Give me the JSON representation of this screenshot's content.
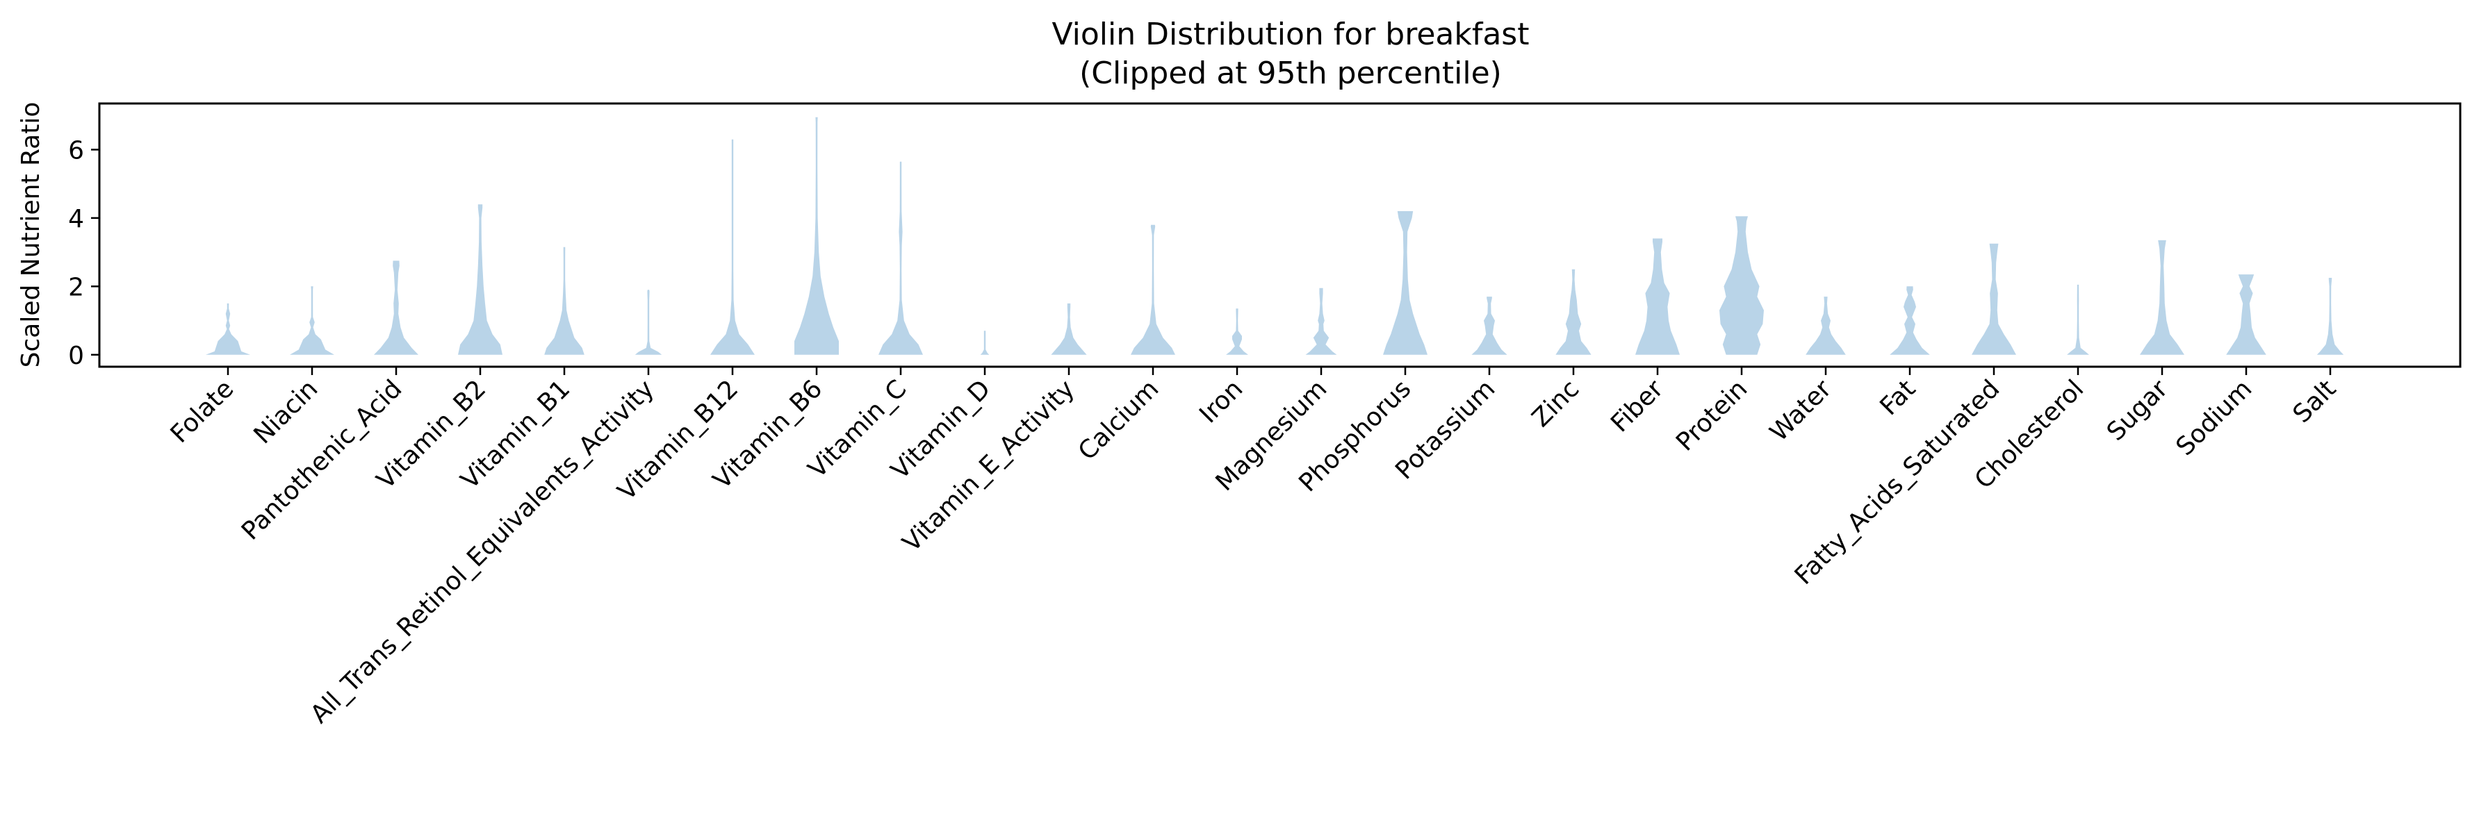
{
  "chart_data": {
    "type": "violin",
    "title": "Violin Distribution for breakfast",
    "subtitle": "(Clipped at 95th percentile)",
    "xlabel": "",
    "ylabel": "Scaled Nutrient Ratio",
    "ylim": [
      -0.35,
      7.35
    ],
    "yticks": [
      0,
      2,
      4,
      6
    ],
    "grid": false,
    "color": "#b9d4e8",
    "categories": [
      "Folate",
      "Niacin",
      "Pantothenic_Acid",
      "Vitamin_B2",
      "Vitamin_B1",
      "All_Trans_Retinol_Equivalents_Activity",
      "Vitamin_B12",
      "Vitamin_B6",
      "Vitamin_C",
      "Vitamin_D",
      "Vitamin_E_Activity",
      "Calcium",
      "Iron",
      "Magnesium",
      "Phosphorus",
      "Potassium",
      "Zinc",
      "Fiber",
      "Protein",
      "Water",
      "Fat",
      "Fatty_Acids_Saturated",
      "Cholesterol",
      "Sugar",
      "Sodium",
      "Salt"
    ],
    "violins": [
      {
        "max": 1.5,
        "profile": [
          [
            0,
            1.0
          ],
          [
            0.1,
            0.6
          ],
          [
            0.4,
            0.45
          ],
          [
            0.6,
            0.15
          ],
          [
            0.75,
            0.05
          ],
          [
            0.85,
            0.1
          ],
          [
            1.0,
            0.04
          ],
          [
            1.2,
            0.1
          ],
          [
            1.35,
            0.03
          ],
          [
            1.5,
            0.04
          ]
        ]
      },
      {
        "max": 2.0,
        "profile": [
          [
            0,
            1.0
          ],
          [
            0.15,
            0.6
          ],
          [
            0.45,
            0.4
          ],
          [
            0.6,
            0.15
          ],
          [
            0.8,
            0.05
          ],
          [
            0.95,
            0.12
          ],
          [
            1.1,
            0.04
          ],
          [
            1.5,
            0.02
          ],
          [
            1.9,
            0.03
          ],
          [
            2.0,
            0.05
          ]
        ]
      },
      {
        "max": 2.75,
        "profile": [
          [
            0,
            1.0
          ],
          [
            0.2,
            0.7
          ],
          [
            0.5,
            0.35
          ],
          [
            0.8,
            0.2
          ],
          [
            1.2,
            0.1
          ],
          [
            1.5,
            0.12
          ],
          [
            1.9,
            0.06
          ],
          [
            2.4,
            0.1
          ],
          [
            2.6,
            0.15
          ],
          [
            2.75,
            0.14
          ]
        ]
      },
      {
        "max": 4.4,
        "profile": [
          [
            0,
            1.0
          ],
          [
            0.3,
            0.9
          ],
          [
            0.6,
            0.55
          ],
          [
            1.0,
            0.3
          ],
          [
            1.5,
            0.22
          ],
          [
            2.0,
            0.15
          ],
          [
            2.6,
            0.1
          ],
          [
            3.3,
            0.06
          ],
          [
            4.0,
            0.05
          ],
          [
            4.3,
            0.1
          ],
          [
            4.4,
            0.1
          ]
        ]
      },
      {
        "max": 3.15,
        "profile": [
          [
            0,
            0.9
          ],
          [
            0.2,
            0.8
          ],
          [
            0.5,
            0.45
          ],
          [
            0.8,
            0.3
          ],
          [
            1.0,
            0.2
          ],
          [
            1.3,
            0.1
          ],
          [
            1.8,
            0.06
          ],
          [
            2.2,
            0.03
          ],
          [
            2.8,
            0.02
          ],
          [
            3.1,
            0.04
          ],
          [
            3.15,
            0.04
          ]
        ]
      },
      {
        "max": 1.9,
        "profile": [
          [
            0,
            0.6
          ],
          [
            0.08,
            0.45
          ],
          [
            0.2,
            0.1
          ],
          [
            0.4,
            0.04
          ],
          [
            1.0,
            0.02
          ],
          [
            1.6,
            0.02
          ],
          [
            1.85,
            0.05
          ],
          [
            1.9,
            0.03
          ]
        ]
      },
      {
        "max": 6.3,
        "profile": [
          [
            0,
            1.0
          ],
          [
            0.3,
            0.7
          ],
          [
            0.6,
            0.3
          ],
          [
            1.0,
            0.12
          ],
          [
            1.6,
            0.05
          ],
          [
            2.5,
            0.03
          ],
          [
            3.5,
            0.015
          ],
          [
            5.0,
            0.01
          ],
          [
            6.2,
            0.015
          ],
          [
            6.3,
            0.02
          ]
        ]
      },
      {
        "max": 6.95,
        "profile": [
          [
            0,
            1.0
          ],
          [
            0.4,
            1.0
          ],
          [
            0.8,
            0.75
          ],
          [
            1.2,
            0.55
          ],
          [
            1.7,
            0.35
          ],
          [
            2.3,
            0.18
          ],
          [
            3.0,
            0.1
          ],
          [
            4.0,
            0.05
          ],
          [
            5.5,
            0.03
          ],
          [
            6.8,
            0.04
          ],
          [
            6.95,
            0.05
          ]
        ]
      },
      {
        "max": 5.65,
        "profile": [
          [
            0,
            1.0
          ],
          [
            0.3,
            0.8
          ],
          [
            0.6,
            0.4
          ],
          [
            1.0,
            0.15
          ],
          [
            1.6,
            0.05
          ],
          [
            2.5,
            0.03
          ],
          [
            3.2,
            0.05
          ],
          [
            3.6,
            0.08
          ],
          [
            4.2,
            0.04
          ],
          [
            5.2,
            0.02
          ],
          [
            5.6,
            0.03
          ],
          [
            5.65,
            0.03
          ]
        ]
      },
      {
        "max": 0.7,
        "profile": [
          [
            0,
            0.2
          ],
          [
            0.05,
            0.12
          ],
          [
            0.15,
            0.03
          ],
          [
            0.4,
            0.01
          ],
          [
            0.6,
            0.01
          ],
          [
            0.7,
            0.015
          ]
        ]
      },
      {
        "max": 1.5,
        "profile": [
          [
            0,
            0.8
          ],
          [
            0.15,
            0.6
          ],
          [
            0.3,
            0.4
          ],
          [
            0.5,
            0.2
          ],
          [
            0.8,
            0.08
          ],
          [
            1.1,
            0.05
          ],
          [
            1.4,
            0.07
          ],
          [
            1.5,
            0.07
          ]
        ]
      },
      {
        "max": 3.8,
        "profile": [
          [
            0,
            1.0
          ],
          [
            0.2,
            0.85
          ],
          [
            0.5,
            0.45
          ],
          [
            0.9,
            0.15
          ],
          [
            1.5,
            0.05
          ],
          [
            2.5,
            0.03
          ],
          [
            3.5,
            0.04
          ],
          [
            3.75,
            0.1
          ],
          [
            3.8,
            0.09
          ]
        ]
      },
      {
        "max": 1.35,
        "profile": [
          [
            0,
            0.5
          ],
          [
            0.1,
            0.3
          ],
          [
            0.25,
            0.1
          ],
          [
            0.45,
            0.22
          ],
          [
            0.55,
            0.22
          ],
          [
            0.7,
            0.05
          ],
          [
            1.0,
            0.02
          ],
          [
            1.3,
            0.05
          ],
          [
            1.35,
            0.05
          ]
        ]
      },
      {
        "max": 1.95,
        "profile": [
          [
            0,
            0.7
          ],
          [
            0.1,
            0.5
          ],
          [
            0.3,
            0.2
          ],
          [
            0.5,
            0.35
          ],
          [
            0.7,
            0.12
          ],
          [
            0.9,
            0.1
          ],
          [
            1.0,
            0.15
          ],
          [
            1.2,
            0.08
          ],
          [
            1.5,
            0.05
          ],
          [
            1.8,
            0.08
          ],
          [
            1.95,
            0.08
          ]
        ]
      },
      {
        "max": 4.2,
        "profile": [
          [
            0,
            1.0
          ],
          [
            0.3,
            0.85
          ],
          [
            0.6,
            0.65
          ],
          [
            0.9,
            0.5
          ],
          [
            1.2,
            0.35
          ],
          [
            1.6,
            0.2
          ],
          [
            2.2,
            0.12
          ],
          [
            3.0,
            0.08
          ],
          [
            3.6,
            0.1
          ],
          [
            4.0,
            0.3
          ],
          [
            4.2,
            0.35
          ]
        ]
      },
      {
        "max": 1.7,
        "profile": [
          [
            0,
            0.8
          ],
          [
            0.15,
            0.55
          ],
          [
            0.35,
            0.35
          ],
          [
            0.6,
            0.15
          ],
          [
            0.85,
            0.2
          ],
          [
            1.0,
            0.25
          ],
          [
            1.2,
            0.08
          ],
          [
            1.5,
            0.07
          ],
          [
            1.65,
            0.12
          ],
          [
            1.7,
            0.12
          ]
        ]
      },
      {
        "max": 2.5,
        "profile": [
          [
            0,
            0.8
          ],
          [
            0.2,
            0.6
          ],
          [
            0.4,
            0.35
          ],
          [
            0.7,
            0.25
          ],
          [
            0.9,
            0.35
          ],
          [
            1.2,
            0.2
          ],
          [
            1.6,
            0.15
          ],
          [
            1.9,
            0.08
          ],
          [
            2.2,
            0.05
          ],
          [
            2.5,
            0.07
          ]
        ]
      },
      {
        "max": 3.4,
        "profile": [
          [
            0,
            1.0
          ],
          [
            0.3,
            0.85
          ],
          [
            0.7,
            0.6
          ],
          [
            1.0,
            0.5
          ],
          [
            1.4,
            0.45
          ],
          [
            1.8,
            0.55
          ],
          [
            2.1,
            0.3
          ],
          [
            2.5,
            0.2
          ],
          [
            3.0,
            0.15
          ],
          [
            3.3,
            0.22
          ],
          [
            3.4,
            0.22
          ]
        ]
      },
      {
        "max": 4.05,
        "profile": [
          [
            0,
            0.7
          ],
          [
            0.3,
            0.85
          ],
          [
            0.6,
            0.7
          ],
          [
            0.9,
            0.95
          ],
          [
            1.3,
            1.0
          ],
          [
            1.7,
            0.7
          ],
          [
            2.0,
            0.8
          ],
          [
            2.5,
            0.45
          ],
          [
            3.0,
            0.28
          ],
          [
            3.6,
            0.18
          ],
          [
            3.9,
            0.22
          ],
          [
            4.05,
            0.28
          ]
        ]
      },
      {
        "max": 1.7,
        "profile": [
          [
            0,
            0.9
          ],
          [
            0.2,
            0.7
          ],
          [
            0.4,
            0.45
          ],
          [
            0.6,
            0.25
          ],
          [
            0.8,
            0.15
          ],
          [
            1.0,
            0.22
          ],
          [
            1.2,
            0.1
          ],
          [
            1.5,
            0.06
          ],
          [
            1.7,
            0.08
          ]
        ]
      },
      {
        "max": 2.0,
        "profile": [
          [
            0,
            0.9
          ],
          [
            0.2,
            0.55
          ],
          [
            0.45,
            0.3
          ],
          [
            0.65,
            0.15
          ],
          [
            0.9,
            0.25
          ],
          [
            1.1,
            0.1
          ],
          [
            1.4,
            0.28
          ],
          [
            1.55,
            0.22
          ],
          [
            1.75,
            0.08
          ],
          [
            1.9,
            0.15
          ],
          [
            2.0,
            0.14
          ]
        ]
      },
      {
        "max": 3.25,
        "profile": [
          [
            0,
            1.0
          ],
          [
            0.3,
            0.75
          ],
          [
            0.6,
            0.45
          ],
          [
            0.9,
            0.2
          ],
          [
            1.3,
            0.15
          ],
          [
            1.8,
            0.18
          ],
          [
            2.2,
            0.08
          ],
          [
            2.7,
            0.1
          ],
          [
            3.0,
            0.15
          ],
          [
            3.25,
            0.2
          ]
        ]
      },
      {
        "max": 2.05,
        "profile": [
          [
            0,
            0.5
          ],
          [
            0.08,
            0.35
          ],
          [
            0.2,
            0.12
          ],
          [
            0.5,
            0.05
          ],
          [
            1.0,
            0.03
          ],
          [
            1.4,
            0.02
          ],
          [
            1.6,
            0.04
          ],
          [
            1.9,
            0.02
          ],
          [
            2.05,
            0.03
          ]
        ]
      },
      {
        "max": 3.35,
        "profile": [
          [
            0,
            1.0
          ],
          [
            0.3,
            0.7
          ],
          [
            0.6,
            0.35
          ],
          [
            1.0,
            0.2
          ],
          [
            1.5,
            0.12
          ],
          [
            2.0,
            0.1
          ],
          [
            2.6,
            0.07
          ],
          [
            3.1,
            0.12
          ],
          [
            3.35,
            0.18
          ]
        ]
      },
      {
        "max": 2.35,
        "profile": [
          [
            0,
            0.9
          ],
          [
            0.2,
            0.7
          ],
          [
            0.5,
            0.4
          ],
          [
            0.8,
            0.25
          ],
          [
            1.2,
            0.2
          ],
          [
            1.5,
            0.15
          ],
          [
            1.8,
            0.3
          ],
          [
            2.0,
            0.15
          ],
          [
            2.25,
            0.3
          ],
          [
            2.35,
            0.35
          ]
        ]
      },
      {
        "max": 2.25,
        "profile": [
          [
            0,
            0.6
          ],
          [
            0.1,
            0.45
          ],
          [
            0.3,
            0.2
          ],
          [
            0.6,
            0.1
          ],
          [
            1.0,
            0.05
          ],
          [
            1.5,
            0.03
          ],
          [
            2.0,
            0.04
          ],
          [
            2.2,
            0.07
          ],
          [
            2.25,
            0.07
          ]
        ]
      }
    ]
  }
}
